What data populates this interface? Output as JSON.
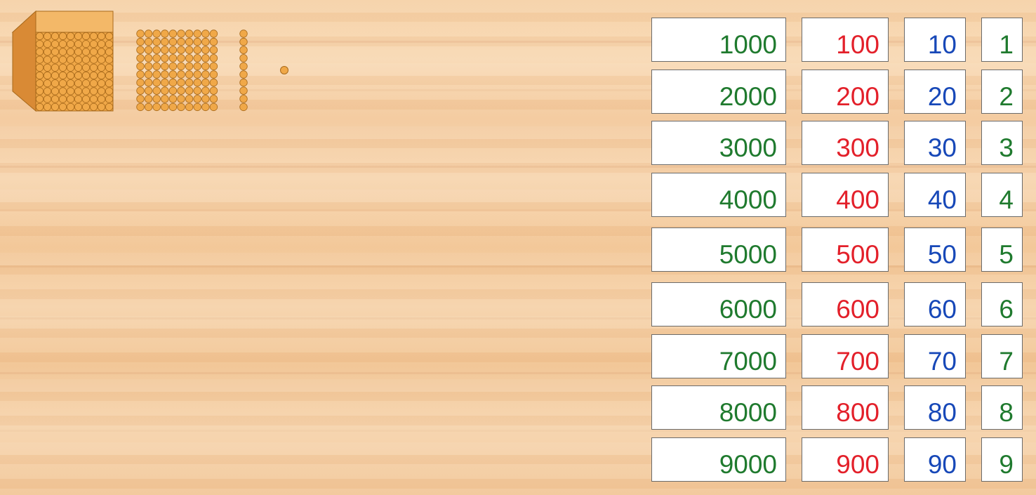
{
  "beads": {
    "thousand_cube": "cube-icon",
    "hundred_square": "square-icon",
    "ten_bar": "bar-icon",
    "unit_bead": "bead-icon",
    "bead_color": "#f0a848",
    "bead_edge": "#a86a1c"
  },
  "cards": {
    "thousands": [
      "1000",
      "2000",
      "3000",
      "4000",
      "5000",
      "6000",
      "7000",
      "8000",
      "9000"
    ],
    "hundreds": [
      "100",
      "200",
      "300",
      "400",
      "500",
      "600",
      "700",
      "800",
      "900"
    ],
    "tens": [
      "10",
      "20",
      "30",
      "40",
      "50",
      "60",
      "70",
      "80",
      "90"
    ],
    "units": [
      "1",
      "2",
      "3",
      "4",
      "5",
      "6",
      "7",
      "8",
      "9"
    ]
  },
  "colors": {
    "thousands": "#1f7a2e",
    "hundreds": "#e3202a",
    "tens": "#1748b8",
    "units": "#1f7a2e"
  }
}
